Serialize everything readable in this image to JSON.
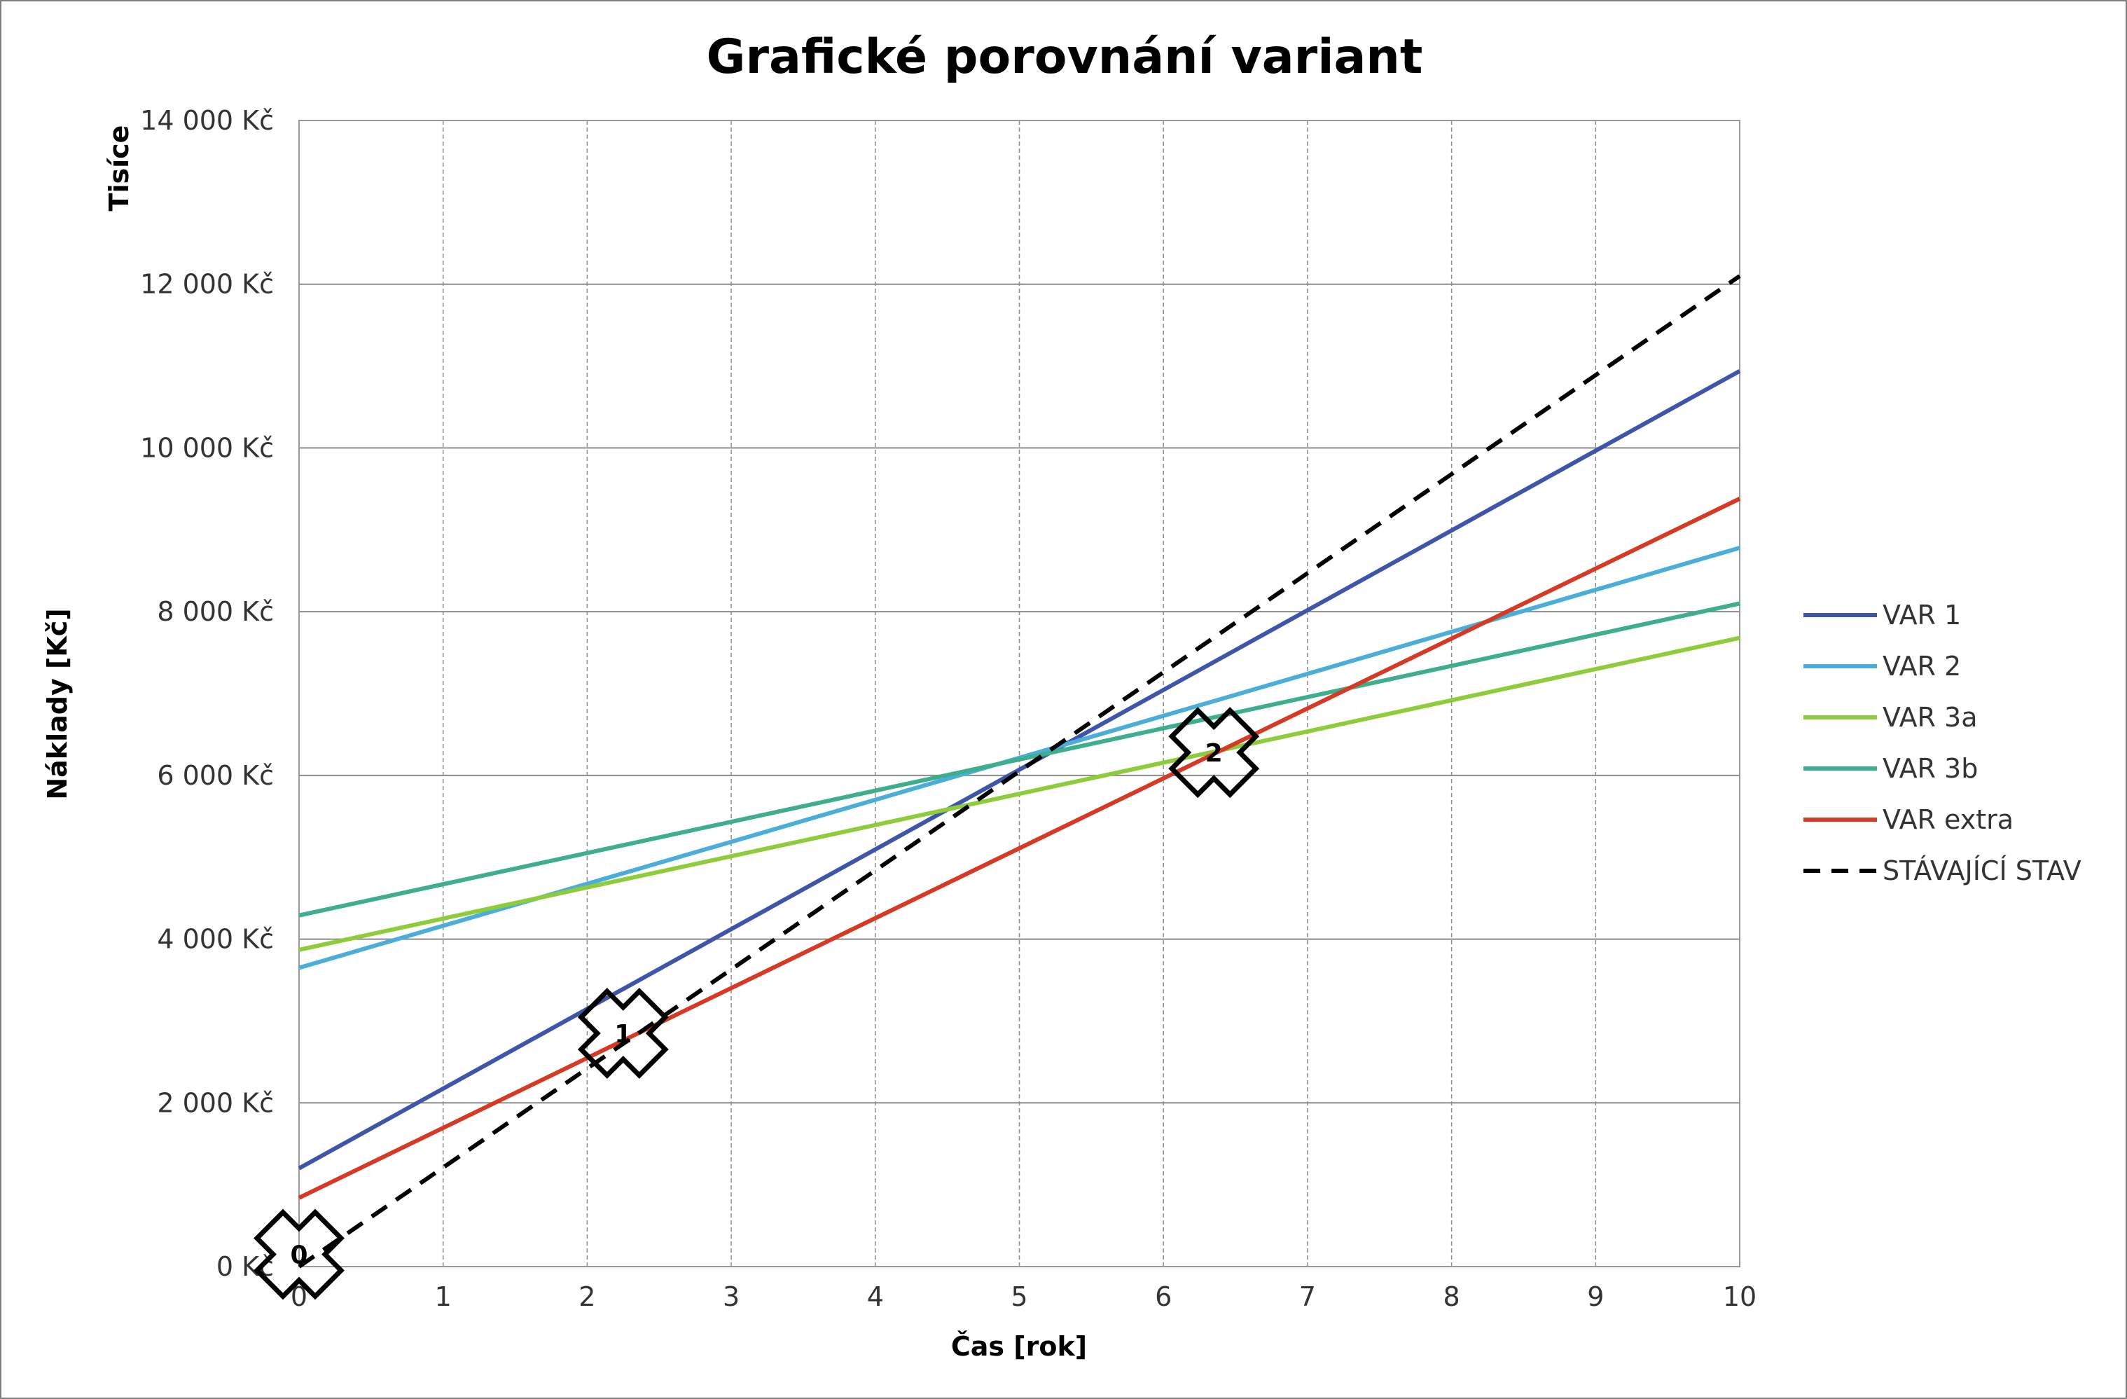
{
  "chart_data": {
    "type": "line",
    "title": "Grafické porovnání variant",
    "xlabel": "Čas [rok]",
    "ylabel": "Náklady [Kč]",
    "yunit_label": "Tisíce",
    "xlim": [
      0,
      10
    ],
    "ylim": [
      0,
      14000
    ],
    "x_ticks": [
      0,
      1,
      2,
      3,
      4,
      5,
      6,
      7,
      8,
      9,
      10
    ],
    "x_tick_labels": [
      "0",
      "1",
      "2",
      "3",
      "4",
      "5",
      "6",
      "7",
      "8",
      "9",
      "10"
    ],
    "y_ticks": [
      0,
      2000,
      4000,
      6000,
      8000,
      10000,
      12000,
      14000
    ],
    "y_tick_labels": [
      "0 Kč",
      "2 000 Kč",
      "4 000 Kč",
      "6 000 Kč",
      "8 000 Kč",
      "10 000 Kč",
      "12 000 Kč",
      "14 000 Kč"
    ],
    "grid": true,
    "legend_position": "right",
    "x": [
      0,
      10
    ],
    "series": [
      {
        "name": "VAR 1",
        "color": "#3f55a8",
        "dashed": false,
        "values": [
          1200,
          10940
        ]
      },
      {
        "name": "VAR 2",
        "color": "#4aaed8",
        "dashed": false,
        "values": [
          3650,
          8780
        ]
      },
      {
        "name": "VAR 3a",
        "color": "#8fcc3c",
        "dashed": false,
        "values": [
          3870,
          7680
        ]
      },
      {
        "name": "VAR 3b",
        "color": "#3fae8e",
        "dashed": false,
        "values": [
          4290,
          8100
        ]
      },
      {
        "name": "VAR extra",
        "color": "#d53a26",
        "dashed": false,
        "values": [
          840,
          9380
        ]
      },
      {
        "name": "STÁVAJÍCÍ STAV",
        "color": "#000000",
        "dashed": true,
        "values": [
          0,
          12100
        ]
      }
    ],
    "annotations": [
      {
        "label": "0",
        "x": 0.0,
        "y": 150
      },
      {
        "label": "1",
        "x": 2.25,
        "y": 2850
      },
      {
        "label": "2",
        "x": 6.35,
        "y": 6280
      }
    ]
  }
}
